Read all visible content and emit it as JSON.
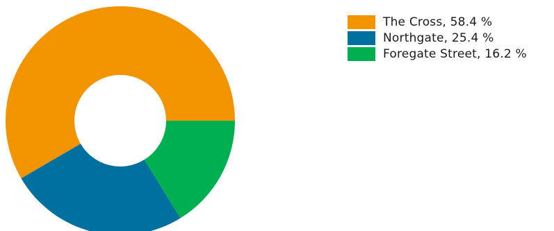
{
  "chart_data": {
    "type": "pie",
    "variant": "donut",
    "slices": [
      {
        "label": "The Cross",
        "value": 58.4,
        "color": "#F29400",
        "legend_text": "The Cross, 58.4 %"
      },
      {
        "label": "Northgate",
        "value": 25.4,
        "color": "#00709E",
        "legend_text": "Northgate, 25.4 %"
      },
      {
        "label": "Foregate Street",
        "value": 16.2,
        "color": "#00B050",
        "legend_text": "Foregate Street, 16.2 %"
      }
    ],
    "start_angle": "3 o'clock",
    "direction": "counter-clockwise",
    "legend_position": "top-right"
  }
}
